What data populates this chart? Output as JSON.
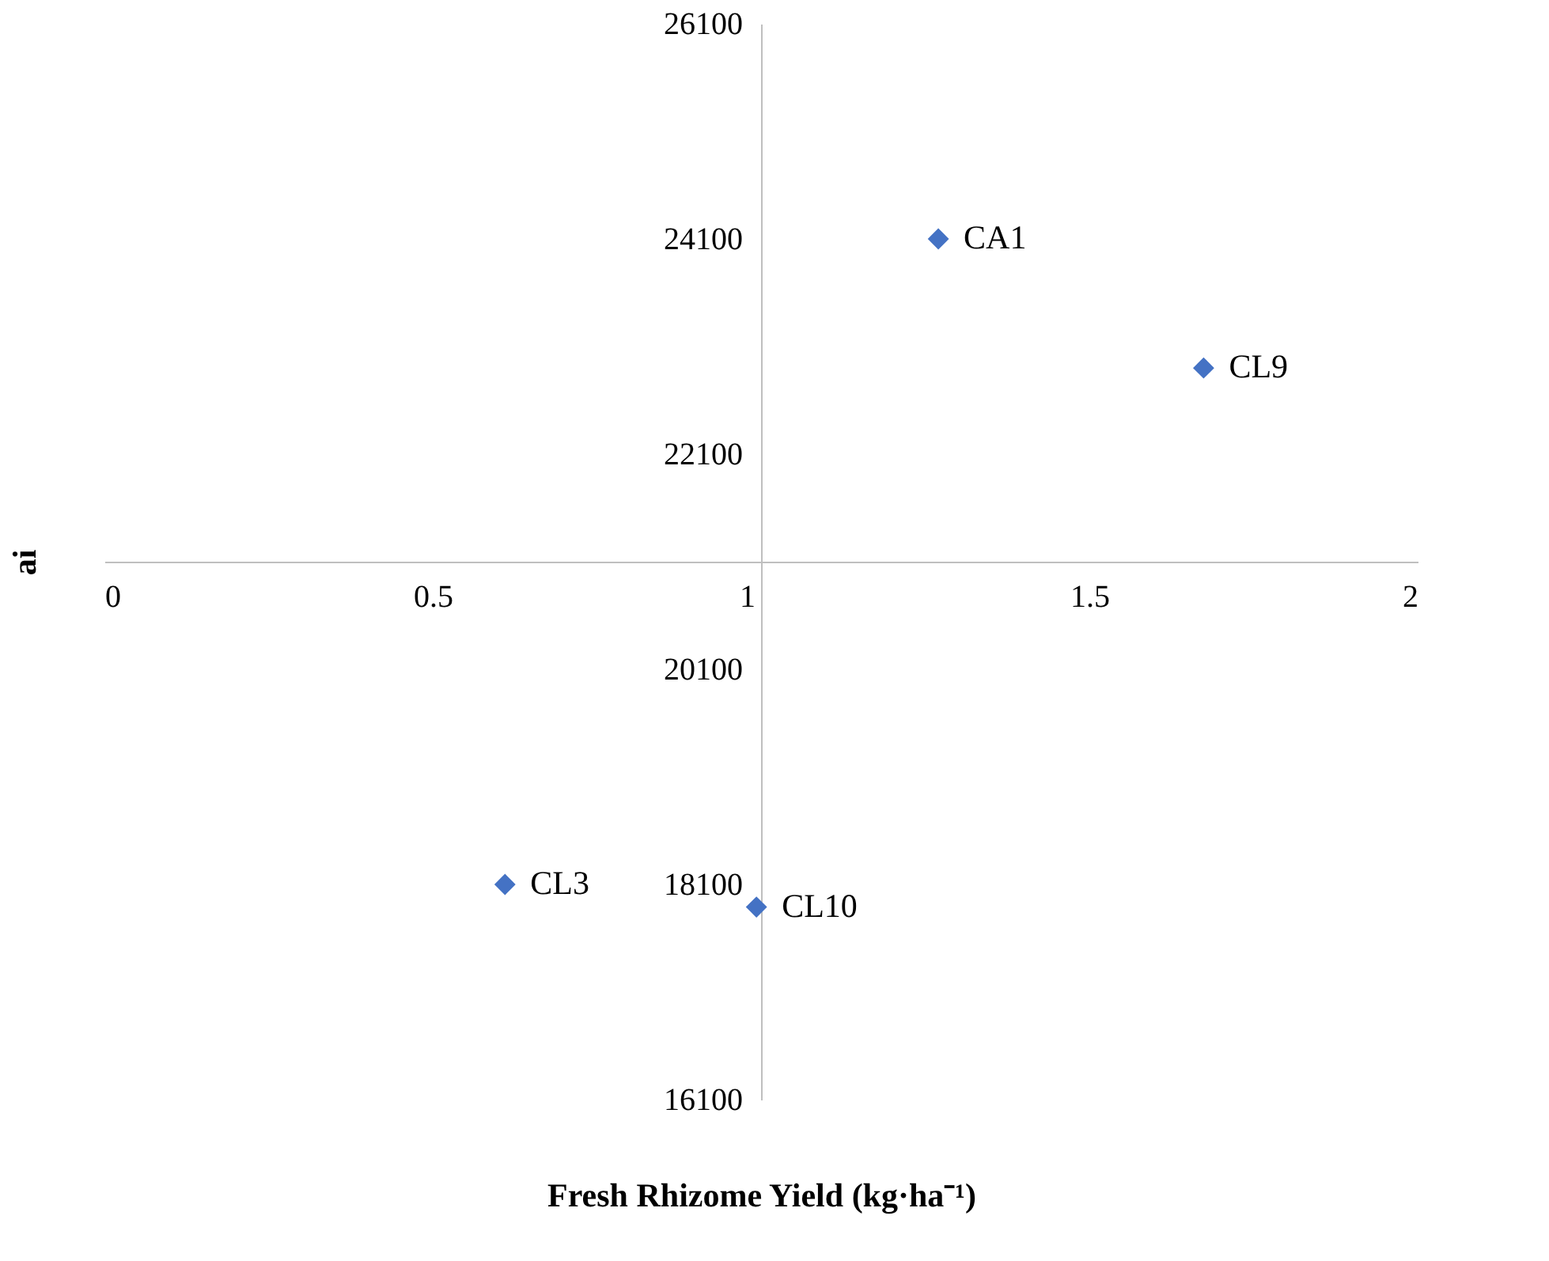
{
  "chart_data": {
    "type": "scatter",
    "xlabel": "Fresh Rhizome Yield (kg·ha⁻¹)",
    "ylabel": "ai",
    "x": [
      1.27,
      1.674,
      0.61,
      0.993
    ],
    "series": [
      {
        "color": "#4472c4",
        "values": [
          24100,
          22900,
          18100,
          17890
        ]
      }
    ],
    "annotations": [
      {
        "text": "CA1",
        "x": 1.27,
        "y": 24100
      },
      {
        "text": "CL9",
        "x": 1.674,
        "y": 22900
      },
      {
        "text": "CL3",
        "x": 0.61,
        "y": 18100
      },
      {
        "text": "CL10",
        "x": 0.993,
        "y": 17890
      }
    ],
    "xlim": [
      0,
      2
    ],
    "xticks": [
      0,
      0.5,
      1,
      1.5,
      2
    ],
    "ylim": [
      16100,
      26100
    ],
    "yticks": [
      16100,
      18100,
      20100,
      22100,
      24100,
      26100
    ],
    "grid": false,
    "marker": "diamond"
  }
}
